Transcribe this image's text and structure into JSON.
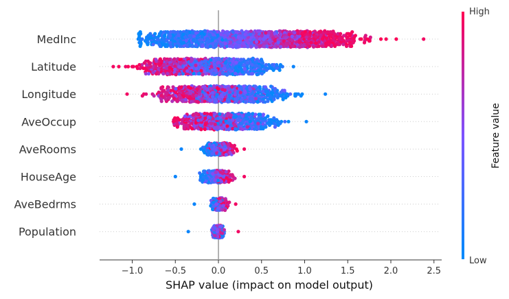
{
  "chart_data": {
    "type": "scatter",
    "subtype": "shap-beeswarm",
    "xlabel": "SHAP value (impact on model output)",
    "xlim": [
      -1.38,
      2.6
    ],
    "xticks": [
      -1.0,
      -0.5,
      0.0,
      0.5,
      1.0,
      1.5,
      2.0,
      2.5
    ],
    "xtick_labels": [
      "−1.0",
      "−0.5",
      "0.0",
      "0.5",
      "1.0",
      "1.5",
      "2.0",
      "2.5"
    ],
    "grid": false,
    "colorbar": {
      "title": "Feature value",
      "high_label": "High",
      "low_label": "Low",
      "high_color": "#ff0052",
      "low_color": "#008bfb"
    },
    "features": [
      {
        "name": "MedInc",
        "min": -0.93,
        "max": 2.38,
        "low_center": -0.55,
        "high_center": 1.3,
        "spread": 0.3
      },
      {
        "name": "Latitude",
        "min": -1.22,
        "max": 0.87,
        "low_center": 0.3,
        "high_center": -0.6,
        "spread": 0.25
      },
      {
        "name": "Longitude",
        "min": -1.06,
        "max": 1.24,
        "low_center": 0.45,
        "high_center": -0.35,
        "spread": 0.25
      },
      {
        "name": "AveOccup",
        "min": -0.52,
        "max": 1.02,
        "low_center": 0.35,
        "high_center": -0.2,
        "spread": 0.2
      },
      {
        "name": "AveRooms",
        "min": -0.43,
        "max": 0.3,
        "low_center": -0.08,
        "high_center": 0.1,
        "spread": 0.06
      },
      {
        "name": "HouseAge",
        "min": -0.5,
        "max": 0.3,
        "low_center": -0.1,
        "high_center": 0.05,
        "spread": 0.06
      },
      {
        "name": "AveBedrms",
        "min": -0.28,
        "max": 0.2,
        "low_center": -0.02,
        "high_center": 0.05,
        "spread": 0.04
      },
      {
        "name": "Population",
        "min": -0.35,
        "max": 0.23,
        "low_center": 0.0,
        "high_center": 0.0,
        "spread": 0.03
      }
    ]
  }
}
